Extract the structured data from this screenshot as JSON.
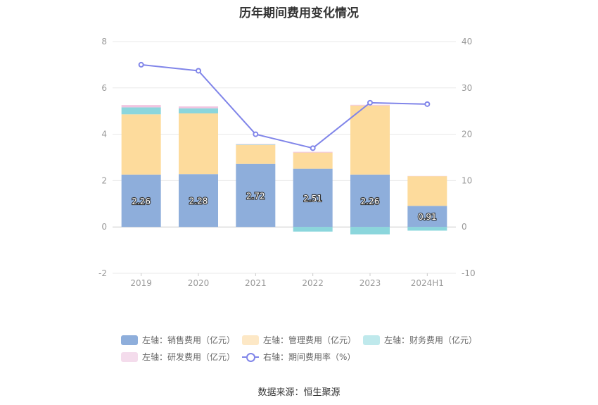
{
  "title": "历年期间费用变化情况",
  "source": "数据来源：恒生聚源",
  "chart_data": {
    "type": "bar",
    "stacked": true,
    "categories": [
      "2019",
      "2020",
      "2021",
      "2022",
      "2023",
      "2024H1"
    ],
    "left_axis": {
      "ylim": [
        -2,
        8
      ],
      "ticks": [
        "-2",
        "0",
        "2",
        "4",
        "6",
        "8"
      ]
    },
    "right_axis": {
      "ylim": [
        -10,
        40
      ],
      "ticks": [
        "-10",
        "0",
        "10",
        "20",
        "30",
        "40"
      ]
    },
    "series": [
      {
        "name": "左轴：销售费用（亿元）",
        "axis": "left",
        "color": "#8eaedb",
        "values": [
          2.26,
          2.28,
          2.72,
          2.51,
          2.26,
          0.91
        ],
        "labels": [
          "2.26",
          "2.28",
          "2.72",
          "2.51",
          "2.26",
          "0.91"
        ]
      },
      {
        "name": "左轴：管理费用（亿元）",
        "axis": "left",
        "color": "#fddb9c",
        "values": [
          2.6,
          2.62,
          0.82,
          0.7,
          2.98,
          1.28
        ]
      },
      {
        "name": "左轴：财务费用（亿元）",
        "axis": "left",
        "color": "#8bd6dc",
        "values": [
          0.3,
          0.22,
          0.02,
          -0.2,
          -0.32,
          -0.16
        ]
      },
      {
        "name": "左轴：研发费用（亿元）",
        "axis": "left",
        "color": "#f1c4e0",
        "values": [
          0.1,
          0.08,
          0.02,
          0.03,
          0.03,
          0.01
        ]
      },
      {
        "name": "右轴：期间费用率（%）",
        "axis": "right",
        "type": "line",
        "color": "#8085e9",
        "values": [
          35.0,
          33.7,
          20.0,
          17.0,
          26.8,
          26.5
        ]
      }
    ],
    "grid": true,
    "legend_position": "bottom"
  }
}
